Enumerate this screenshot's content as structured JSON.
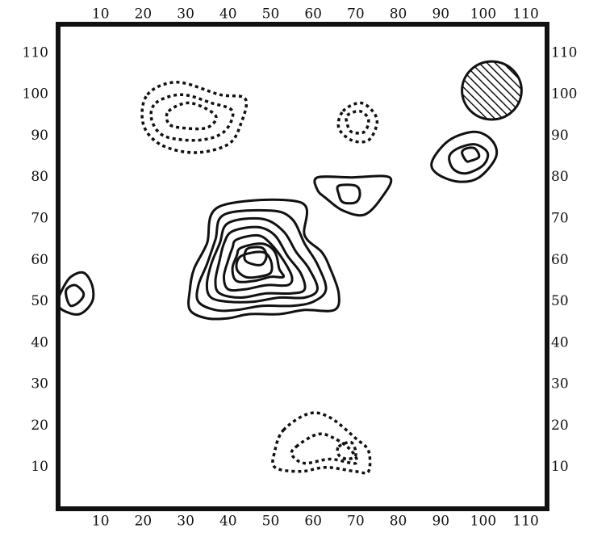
{
  "colors": {
    "ink": "#111111",
    "background": "#ffffff"
  },
  "chart_data": {
    "type": "contour",
    "title": "",
    "xlabel": "",
    "ylabel": "",
    "xlim": [
      0,
      115
    ],
    "ylim": [
      0,
      117
    ],
    "x_ticks": [
      10,
      20,
      30,
      40,
      50,
      60,
      70,
      80,
      90,
      100,
      110
    ],
    "y_ticks": [
      10,
      20,
      30,
      40,
      50,
      60,
      70,
      80,
      90,
      100,
      110
    ],
    "x_tick_labels": [
      "10",
      "20",
      "30",
      "40",
      "50",
      "60",
      "70",
      "80",
      "90",
      "100",
      "110"
    ],
    "y_tick_labels_left": [
      "10",
      "20",
      "30",
      "40",
      "50",
      "60",
      "70",
      "80",
      "90",
      "100",
      "110"
    ],
    "y_tick_labels_right": [
      "10",
      "20",
      "30",
      "40",
      "50",
      "60",
      "70",
      "80",
      "90",
      "100",
      "110"
    ],
    "x_tick_labels_top": [
      "10",
      "20",
      "30",
      "40",
      "50",
      "60",
      "70",
      "80",
      "90",
      "100",
      "110"
    ],
    "beam": {
      "x": 102,
      "y": 101,
      "radius": 7,
      "style": "hatched"
    },
    "features": [
      {
        "name": "central-source",
        "style": "solid",
        "contours": [
          [
            [
              38,
              73
            ],
            [
              57,
              74
            ],
            [
              58,
              66
            ],
            [
              62,
              62
            ],
            [
              64,
              58
            ],
            [
              66,
              52
            ],
            [
              65,
              48
            ],
            [
              58,
              48
            ],
            [
              52,
              47
            ],
            [
              45,
              47
            ],
            [
              40,
              46
            ],
            [
              35,
              46
            ],
            [
              31,
              48
            ],
            [
              31,
              53
            ],
            [
              32,
              58
            ],
            [
              35,
              64
            ]
          ],
          [
            [
              39,
              71
            ],
            [
              50,
              72
            ],
            [
              55,
              70
            ],
            [
              58,
              64
            ],
            [
              61,
              59
            ],
            [
              63,
              53
            ],
            [
              60,
              50
            ],
            [
              55,
              49
            ],
            [
              48,
              49
            ],
            [
              42,
              48
            ],
            [
              37,
              48
            ],
            [
              33,
              50
            ],
            [
              33,
              54
            ],
            [
              35,
              59
            ],
            [
              37,
              65
            ]
          ],
          [
            [
              40,
              69
            ],
            [
              48,
              70
            ],
            [
              53,
              67
            ],
            [
              56,
              62
            ],
            [
              59,
              58
            ],
            [
              61,
              53
            ],
            [
              58,
              51
            ],
            [
              52,
              51
            ],
            [
              46,
              50
            ],
            [
              40,
              50
            ],
            [
              36,
              51
            ],
            [
              35,
              54
            ],
            [
              36,
              59
            ],
            [
              38,
              64
            ]
          ],
          [
            [
              41,
              67
            ],
            [
              47,
              68
            ],
            [
              51,
              66
            ],
            [
              54,
              61
            ],
            [
              57,
              57
            ],
            [
              58,
              53
            ],
            [
              55,
              52
            ],
            [
              49,
              52
            ],
            [
              43,
              51
            ],
            [
              38,
              52
            ],
            [
              37,
              55
            ],
            [
              38,
              60
            ],
            [
              39,
              64
            ]
          ],
          [
            [
              42,
              65
            ],
            [
              47,
              66
            ],
            [
              50,
              64
            ],
            [
              53,
              60
            ],
            [
              55,
              56
            ],
            [
              54,
              54
            ],
            [
              49,
              54
            ],
            [
              44,
              53
            ],
            [
              40,
              53
            ],
            [
              39,
              56
            ],
            [
              40,
              60
            ],
            [
              41,
              63
            ]
          ],
          [
            [
              43,
              63
            ],
            [
              48,
              64
            ],
            [
              51,
              62
            ],
            [
              52,
              58
            ],
            [
              53,
              56
            ],
            [
              50,
              56
            ],
            [
              46,
              55
            ],
            [
              42,
              55
            ],
            [
              41,
              58
            ],
            [
              42,
              61
            ]
          ],
          [
            [
              43,
              61
            ],
            [
              48,
              62
            ],
            [
              50,
              60
            ],
            [
              50,
              57
            ],
            [
              47,
              56
            ],
            [
              44,
              56
            ],
            [
              42,
              58
            ]
          ],
          [
            [
              45,
              63
            ],
            [
              48,
              63
            ],
            [
              49,
              61
            ],
            [
              48,
              59
            ],
            [
              46,
              59
            ],
            [
              44,
              60
            ],
            [
              44,
              62
            ]
          ]
        ]
      },
      {
        "name": "upper-right-source",
        "style": "solid",
        "contours": [
          [
            [
              69,
              80
            ],
            [
              78,
              80
            ],
            [
              76,
              75
            ],
            [
              72,
              71
            ],
            [
              67,
              72
            ],
            [
              63,
              75
            ],
            [
              61,
              77
            ],
            [
              61,
              80
            ]
          ],
          [
            [
              66,
              78
            ],
            [
              70,
              78
            ],
            [
              71,
              76
            ],
            [
              70,
              74
            ],
            [
              67,
              74
            ],
            [
              66,
              76
            ]
          ]
        ]
      },
      {
        "name": "far-right-source",
        "style": "solid",
        "contours": [
          [
            [
              92,
              89
            ],
            [
              98,
              91
            ],
            [
              102,
              89
            ],
            [
              103,
              85
            ],
            [
              99,
              80
            ],
            [
              94,
              79
            ],
            [
              89,
              81
            ],
            [
              88,
              84
            ]
          ],
          [
            [
              94,
              87
            ],
            [
              98,
              88
            ],
            [
              101,
              86
            ],
            [
              100,
              83
            ],
            [
              96,
              81
            ],
            [
              93,
              82
            ],
            [
              92,
              85
            ]
          ],
          [
            [
              96,
              87
            ],
            [
              98,
              87
            ],
            [
              99,
              85
            ],
            [
              97,
              84
            ],
            [
              96,
              84
            ],
            [
              95,
              86
            ]
          ]
        ]
      },
      {
        "name": "left-edge-source",
        "style": "solid",
        "contours": [
          [
            [
              1,
              53
            ],
            [
              3,
              56
            ],
            [
              6,
              57
            ],
            [
              8,
              54
            ],
            [
              8,
              50
            ],
            [
              5,
              47
            ],
            [
              1,
              48
            ],
            [
              0,
              50
            ]
          ],
          [
            [
              2,
              53
            ],
            [
              4,
              54
            ],
            [
              6,
              52
            ],
            [
              5,
              50
            ],
            [
              3,
              49
            ],
            [
              2,
              51
            ]
          ]
        ]
      },
      {
        "name": "upper-left-trough",
        "style": "dotted",
        "contours": [
          [
            [
              21,
              100
            ],
            [
              28,
              103
            ],
            [
              38,
              100
            ],
            [
              44,
              99
            ],
            [
              43,
              93
            ],
            [
              40,
              88
            ],
            [
              32,
              86
            ],
            [
              24,
              88
            ],
            [
              20,
              93
            ]
          ],
          [
            [
              23,
              98
            ],
            [
              29,
              100
            ],
            [
              36,
              98
            ],
            [
              41,
              96
            ],
            [
              39,
              91
            ],
            [
              33,
              89
            ],
            [
              25,
              90
            ],
            [
              22,
              94
            ]
          ],
          [
            [
              26,
              96
            ],
            [
              31,
              98
            ],
            [
              37,
              95
            ],
            [
              35,
              92
            ],
            [
              29,
              92
            ],
            [
              26,
              93
            ]
          ]
        ]
      },
      {
        "name": "upper-mid-trough",
        "style": "dotted",
        "contours": [
          [
            [
              67,
              96
            ],
            [
              71,
              98
            ],
            [
              74,
              96
            ],
            [
              75,
              93
            ],
            [
              73,
              89
            ],
            [
              69,
              89
            ],
            [
              66,
              92
            ]
          ],
          [
            [
              68,
              95
            ],
            [
              71,
              96
            ],
            [
              73,
              94
            ],
            [
              72,
              91
            ],
            [
              69,
              91
            ],
            [
              68,
              93
            ]
          ]
        ]
      },
      {
        "name": "lower-trough",
        "style": "dotted",
        "contours": [
          [
            [
              53,
              19
            ],
            [
              59,
              23
            ],
            [
              64,
              22
            ],
            [
              70,
              17
            ],
            [
              73,
              14
            ],
            [
              73,
              9
            ],
            [
              70,
              9
            ],
            [
              63,
              10
            ],
            [
              57,
              9
            ],
            [
              51,
              10
            ],
            [
              51,
              14
            ]
          ],
          [
            [
              56,
              15
            ],
            [
              61,
              18
            ],
            [
              65,
              17
            ],
            [
              69,
              14
            ],
            [
              70,
              11
            ],
            [
              64,
              12
            ],
            [
              58,
              11
            ],
            [
              55,
              13
            ]
          ],
          [
            [
              66,
              15
            ],
            [
              69,
              16
            ],
            [
              70,
              13
            ],
            [
              68,
              12
            ],
            [
              66,
              13
            ]
          ]
        ]
      }
    ]
  }
}
